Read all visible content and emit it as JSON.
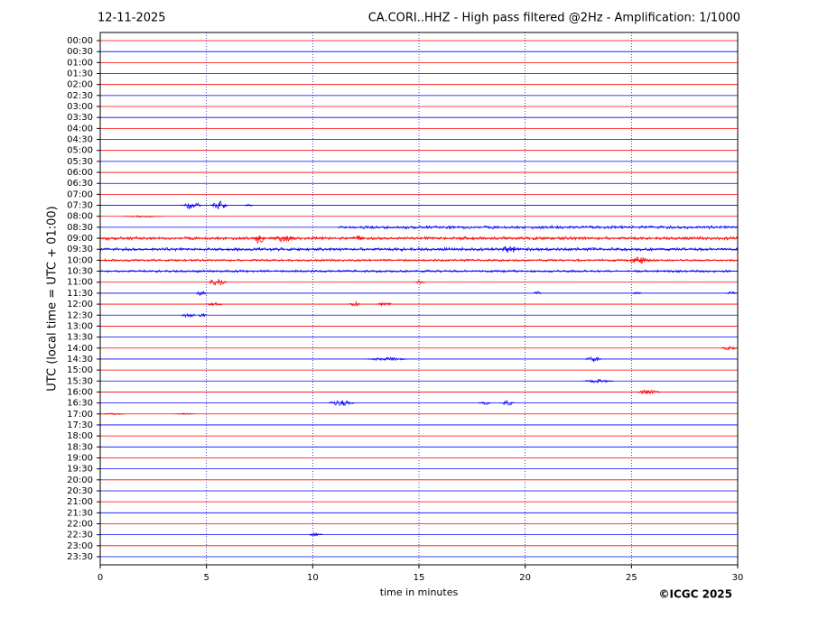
{
  "chart_data": {
    "type": "seismogram",
    "date": "12-11-2025",
    "title": "CA.CORI..HHZ - High pass filtered @2Hz - Amplification: 1/1000",
    "ylabel": "UTC (local time = UTC + 01:00)",
    "xlabel": "time in minutes",
    "credit": "©ICGC 2025",
    "xlim": [
      0,
      30
    ],
    "xticks": [
      0,
      5,
      10,
      15,
      20,
      25,
      30
    ],
    "grid": true,
    "colors": [
      "#ff0000",
      "#0000ff"
    ],
    "categories": [
      "00:00",
      "00:30",
      "01:00",
      "01:30",
      "02:00",
      "02:30",
      "03:00",
      "03:30",
      "04:00",
      "04:30",
      "05:00",
      "05:30",
      "06:00",
      "06:30",
      "07:00",
      "07:30",
      "08:00",
      "08:30",
      "09:00",
      "09:30",
      "10:00",
      "10:30",
      "11:00",
      "11:30",
      "12:00",
      "12:30",
      "13:00",
      "13:30",
      "14:00",
      "14:30",
      "15:00",
      "15:30",
      "16:00",
      "16:30",
      "17:00",
      "17:30",
      "18:00",
      "18:30",
      "19:00",
      "19:30",
      "20:00",
      "20:30",
      "21:00",
      "21:30",
      "22:00",
      "22:30",
      "23:00",
      "23:30"
    ],
    "events": [
      {
        "row": 15,
        "x": [
          3.8,
          4.8
        ],
        "amplitude": 4
      },
      {
        "row": 15,
        "x": [
          5.2,
          6.0
        ],
        "amplitude": 5
      },
      {
        "row": 15,
        "x": [
          6.8,
          7.2
        ],
        "amplitude": 2
      },
      {
        "row": 16,
        "x": [
          1,
          3
        ],
        "amplitude": 1
      },
      {
        "row": 17,
        "x": [
          11.2,
          30
        ],
        "amplitude": 2
      },
      {
        "row": 18,
        "x": [
          0,
          30
        ],
        "amplitude": 2
      },
      {
        "row": 18,
        "x": [
          7.2,
          7.8
        ],
        "amplitude": 6
      },
      {
        "row": 18,
        "x": [
          8,
          9.2
        ],
        "amplitude": 4
      },
      {
        "row": 18,
        "x": [
          11.8,
          12.4
        ],
        "amplitude": 3
      },
      {
        "row": 19,
        "x": [
          0,
          30
        ],
        "amplitude": 2
      },
      {
        "row": 19,
        "x": [
          18.8,
          19.8
        ],
        "amplitude": 4
      },
      {
        "row": 20,
        "x": [
          0,
          30
        ],
        "amplitude": 1.5
      },
      {
        "row": 20,
        "x": [
          24.8,
          26
        ],
        "amplitude": 4
      },
      {
        "row": 21,
        "x": [
          0,
          30
        ],
        "amplitude": 1.5
      },
      {
        "row": 22,
        "x": [
          5,
          6
        ],
        "amplitude": 4
      },
      {
        "row": 22,
        "x": [
          14.8,
          15.3
        ],
        "amplitude": 2
      },
      {
        "row": 23,
        "x": [
          4.5,
          5
        ],
        "amplitude": 3
      },
      {
        "row": 23,
        "x": [
          20.4,
          20.8
        ],
        "amplitude": 2
      },
      {
        "row": 23,
        "x": [
          25,
          25.5
        ],
        "amplitude": 2
      },
      {
        "row": 23,
        "x": [
          29.4,
          30
        ],
        "amplitude": 2
      },
      {
        "row": 24,
        "x": [
          5,
          5.8
        ],
        "amplitude": 2
      },
      {
        "row": 24,
        "x": [
          11.7,
          12.3
        ],
        "amplitude": 3
      },
      {
        "row": 24,
        "x": [
          13,
          13.8
        ],
        "amplitude": 2
      },
      {
        "row": 25,
        "x": [
          3.8,
          4.5
        ],
        "amplitude": 3
      },
      {
        "row": 25,
        "x": [
          4.6,
          5
        ],
        "amplitude": 3
      },
      {
        "row": 28,
        "x": [
          29.2,
          30
        ],
        "amplitude": 2
      },
      {
        "row": 29,
        "x": [
          12.5,
          14.5
        ],
        "amplitude": 2
      },
      {
        "row": 29,
        "x": [
          22.8,
          23.6
        ],
        "amplitude": 3
      },
      {
        "row": 31,
        "x": [
          22.7,
          24.2
        ],
        "amplitude": 2
      },
      {
        "row": 32,
        "x": [
          25.2,
          26.4
        ],
        "amplitude": 3
      },
      {
        "row": 33,
        "x": [
          10.7,
          12
        ],
        "amplitude": 3
      },
      {
        "row": 33,
        "x": [
          17.8,
          18.4
        ],
        "amplitude": 2
      },
      {
        "row": 33,
        "x": [
          18.8,
          19.5
        ],
        "amplitude": 3
      },
      {
        "row": 34,
        "x": [
          0,
          1.2
        ],
        "amplitude": 1
      },
      {
        "row": 34,
        "x": [
          3.5,
          4.5
        ],
        "amplitude": 1
      },
      {
        "row": 45,
        "x": [
          9.8,
          10.5
        ],
        "amplitude": 2
      }
    ]
  }
}
